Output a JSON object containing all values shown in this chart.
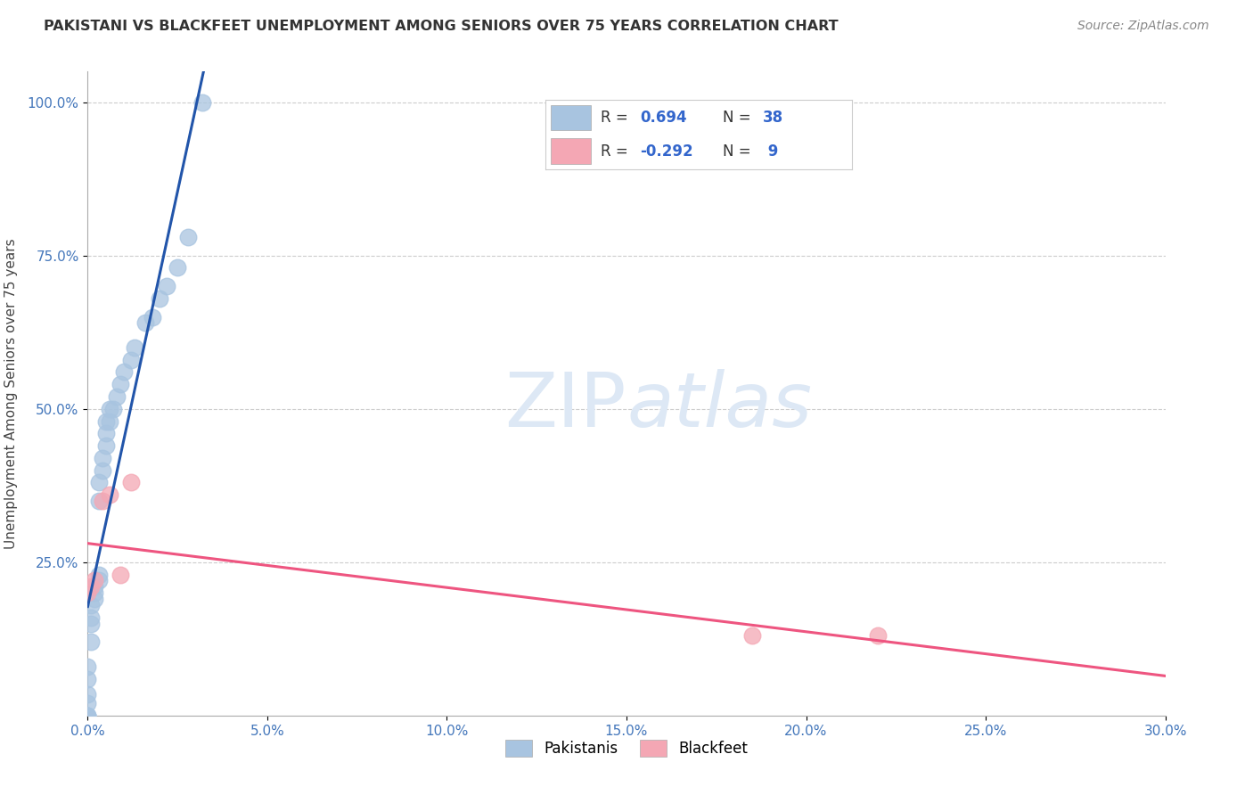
{
  "title": "PAKISTANI VS BLACKFEET UNEMPLOYMENT AMONG SENIORS OVER 75 YEARS CORRELATION CHART",
  "source": "Source: ZipAtlas.com",
  "ylabel": "Unemployment Among Seniors over 75 years",
  "xlim": [
    0.0,
    0.3
  ],
  "ylim": [
    0.0,
    1.05
  ],
  "xtick_labels": [
    "0.0%",
    "5.0%",
    "10.0%",
    "15.0%",
    "20.0%",
    "25.0%",
    "30.0%"
  ],
  "xtick_vals": [
    0.0,
    0.05,
    0.1,
    0.15,
    0.2,
    0.25,
    0.3
  ],
  "ytick_labels": [
    "25.0%",
    "50.0%",
    "75.0%",
    "100.0%"
  ],
  "ytick_vals": [
    0.25,
    0.5,
    0.75,
    1.0
  ],
  "pakistani_color": "#a8c4e0",
  "blackfeet_color": "#f4a7b4",
  "blue_line_color": "#2255aa",
  "pink_line_color": "#ee5580",
  "dashed_line_color": "#90b8d8",
  "watermark_color": "#dde8f5",
  "r_pakistani": 0.694,
  "n_pakistani": 38,
  "r_blackfeet": -0.292,
  "n_blackfeet": 9,
  "pakistani_x": [
    0.0,
    0.0,
    0.0,
    0.0,
    0.0,
    0.0,
    0.0,
    0.001,
    0.001,
    0.001,
    0.001,
    0.002,
    0.002,
    0.002,
    0.003,
    0.003,
    0.003,
    0.003,
    0.004,
    0.004,
    0.005,
    0.005,
    0.005,
    0.006,
    0.006,
    0.007,
    0.008,
    0.009,
    0.01,
    0.012,
    0.013,
    0.016,
    0.018,
    0.02,
    0.022,
    0.025,
    0.028,
    0.032
  ],
  "pakistani_y": [
    0.0,
    0.0,
    0.0,
    0.02,
    0.035,
    0.06,
    0.08,
    0.12,
    0.15,
    0.16,
    0.18,
    0.19,
    0.2,
    0.21,
    0.22,
    0.23,
    0.35,
    0.38,
    0.4,
    0.42,
    0.44,
    0.46,
    0.48,
    0.48,
    0.5,
    0.5,
    0.52,
    0.54,
    0.56,
    0.58,
    0.6,
    0.64,
    0.65,
    0.68,
    0.7,
    0.73,
    0.78,
    1.0
  ],
  "blackfeet_x": [
    0.0,
    0.001,
    0.002,
    0.004,
    0.006,
    0.009,
    0.012,
    0.185,
    0.22
  ],
  "blackfeet_y": [
    0.2,
    0.21,
    0.22,
    0.35,
    0.36,
    0.23,
    0.38,
    0.13,
    0.13
  ]
}
